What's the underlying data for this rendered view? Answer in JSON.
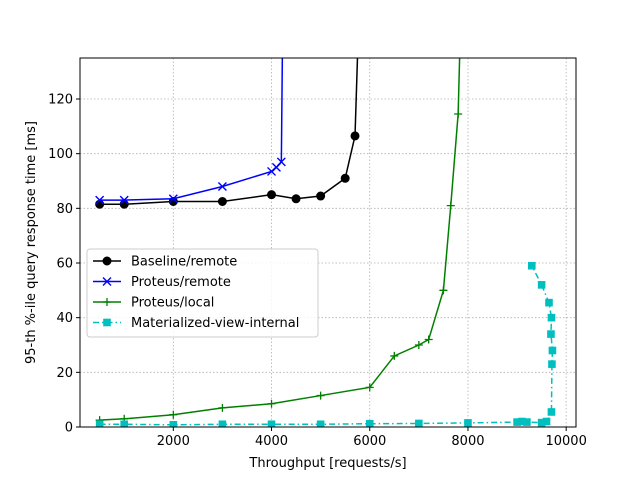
{
  "chart_data": {
    "type": "line",
    "title": "",
    "xlabel": "Throughput [requests/s]",
    "ylabel": "95-th %-ile query response time [ms]",
    "xlim": [
      100,
      10200
    ],
    "ylim": [
      0,
      135
    ],
    "xticks": [
      2000,
      4000,
      6000,
      8000,
      10000
    ],
    "yticks": [
      0,
      20,
      40,
      60,
      80,
      100,
      120
    ],
    "grid": true,
    "legend_position": "center-left",
    "series": [
      {
        "name": "Baseline/remote",
        "color": "#000000",
        "marker": "circle",
        "linestyle": "solid",
        "points": [
          [
            500,
            81.5
          ],
          [
            1000,
            81.5
          ],
          [
            2000,
            82.5
          ],
          [
            3000,
            82.5
          ],
          [
            4000,
            85
          ],
          [
            4500,
            83.5
          ],
          [
            5000,
            84.5
          ],
          [
            5500,
            91
          ],
          [
            5700,
            106.5
          ],
          [
            5750,
            135
          ]
        ]
      },
      {
        "name": "Proteus/remote",
        "color": "#0000ff",
        "marker": "x",
        "linestyle": "solid",
        "points": [
          [
            500,
            83
          ],
          [
            1000,
            83
          ],
          [
            2000,
            83.5
          ],
          [
            3000,
            88
          ],
          [
            4000,
            93.5
          ],
          [
            4100,
            95
          ],
          [
            4200,
            97
          ],
          [
            4220,
            135
          ]
        ]
      },
      {
        "name": "Proteus/local",
        "color": "#008000",
        "marker": "plus",
        "linestyle": "solid",
        "points": [
          [
            500,
            2.5
          ],
          [
            1000,
            3
          ],
          [
            2000,
            4.5
          ],
          [
            3000,
            7
          ],
          [
            4000,
            8.5
          ],
          [
            5000,
            11.5
          ],
          [
            6000,
            14.5
          ],
          [
            6500,
            26
          ],
          [
            7000,
            30
          ],
          [
            7200,
            32
          ],
          [
            7500,
            50
          ],
          [
            7650,
            81
          ],
          [
            7800,
            114.5
          ],
          [
            7830,
            135
          ]
        ]
      },
      {
        "name": "Materialized-view-internal",
        "color": "#00bfbf",
        "marker": "square",
        "linestyle": "dashdot",
        "points": [
          [
            500,
            1
          ],
          [
            1000,
            1
          ],
          [
            2000,
            0.8
          ],
          [
            3000,
            1
          ],
          [
            4000,
            1
          ],
          [
            5000,
            1
          ],
          [
            6000,
            1.2
          ],
          [
            7000,
            1.3
          ],
          [
            8000,
            1.5
          ],
          [
            9000,
            1.8
          ],
          [
            9100,
            2
          ],
          [
            9200,
            1.8
          ],
          [
            9500,
            1.6
          ],
          [
            9600,
            2
          ],
          [
            9700,
            5.5
          ],
          [
            9710,
            23
          ],
          [
            9720,
            28
          ],
          [
            9690,
            34
          ],
          [
            9700,
            40
          ],
          [
            9650,
            45.5
          ],
          [
            9500,
            52
          ],
          [
            9300,
            59
          ]
        ]
      }
    ]
  }
}
